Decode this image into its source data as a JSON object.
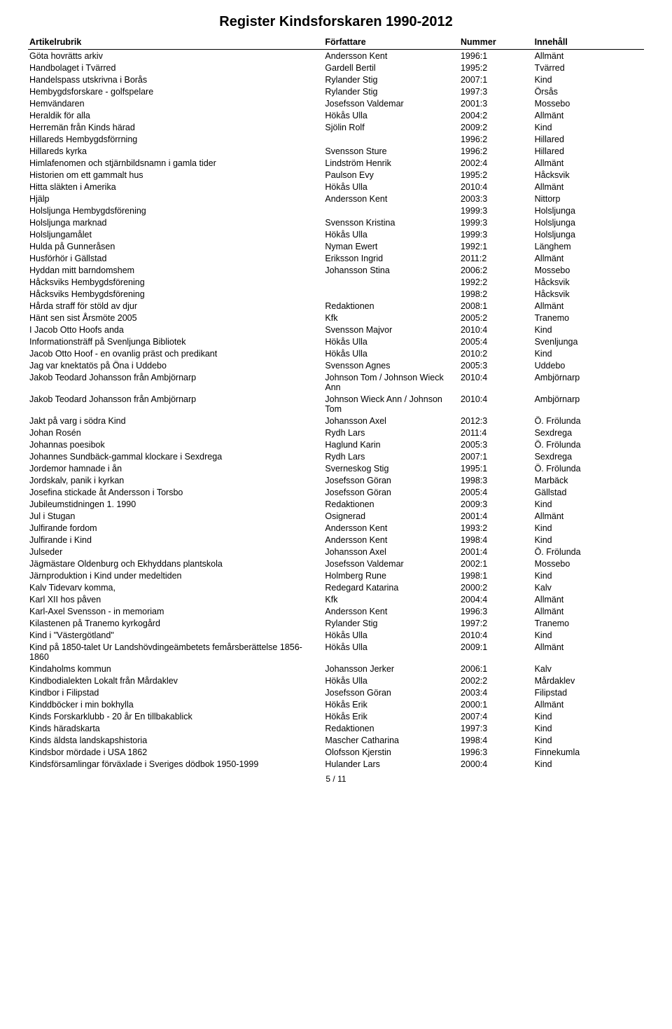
{
  "title": "Register Kindsforskaren 1990-2012",
  "columns": [
    "Artikelrubrik",
    "Författare",
    "Nummer",
    "Innehåll"
  ],
  "rows": [
    [
      "Göta hovrätts arkiv",
      "Andersson Kent",
      "1996:1",
      "Allmänt"
    ],
    [
      "Handbolaget i Tvärred",
      "Gardell Bertil",
      "1995:2",
      "Tvärred"
    ],
    [
      "Handelspass utskrivna i Borås",
      "Rylander Stig",
      "2007:1",
      "Kind"
    ],
    [
      "Hembygdsforskare - golfspelare",
      "Rylander Stig",
      "1997:3",
      "Örsås"
    ],
    [
      "Hemvändaren",
      "Josefsson Valdemar",
      "2001:3",
      "Mossebo"
    ],
    [
      "Heraldik för alla",
      "Hökås Ulla",
      "2004:2",
      "Allmänt"
    ],
    [
      "Herremän från Kinds härad",
      "Sjölin Rolf",
      "2009:2",
      "Kind"
    ],
    [
      "Hillareds Hembygdsförrning",
      "",
      "1996:2",
      "Hillared"
    ],
    [
      "Hillareds kyrka",
      "Svensson Sture",
      "1996:2",
      "Hillared"
    ],
    [
      "Himlafenomen och stjärnbildsnamn i gamla tider",
      "Lindström Henrik",
      "2002:4",
      "Allmänt"
    ],
    [
      "Historien om ett gammalt hus",
      "Paulson Evy",
      "1995:2",
      "Håcksvik"
    ],
    [
      "Hitta släkten i Amerika",
      "Hökås Ulla",
      "2010:4",
      "Allmänt"
    ],
    [
      "Hjälp",
      "Andersson Kent",
      "2003:3",
      "Nittorp"
    ],
    [
      "Holsljunga Hembygdsförening",
      "",
      "1999:3",
      "Holsljunga"
    ],
    [
      "Holsljunga marknad",
      "Svensson Kristina",
      "1999:3",
      "Holsljunga"
    ],
    [
      "Holsljungamålet",
      "Hökås Ulla",
      "1999:3",
      "Holsljunga"
    ],
    [
      "Hulda på Gunneråsen",
      "Nyman Ewert",
      "1992:1",
      "Länghem"
    ],
    [
      "Husförhör i Gällstad",
      "Eriksson Ingrid",
      "2011:2",
      "Allmänt"
    ],
    [
      "Hyddan mitt barndomshem",
      "Johansson Stina",
      "2006:2",
      "Mossebo"
    ],
    [
      "Håcksviks Hembygdsförening",
      "",
      "1992:2",
      "Håcksvik"
    ],
    [
      "Håcksviks Hembygdsförening",
      "",
      "1998:2",
      "Håcksvik"
    ],
    [
      "Hårda straff för stöld av djur",
      "Redaktionen",
      "2008:1",
      "Allmänt"
    ],
    [
      "Hänt sen sist  Årsmöte 2005",
      "Kfk",
      "2005:2",
      "Tranemo"
    ],
    [
      "I Jacob Otto Hoofs anda",
      "Svensson Majvor",
      "2010:4",
      "Kind"
    ],
    [
      "Informationsträff på Svenljunga Bibliotek",
      "Hökås Ulla",
      "2005:4",
      "Svenljunga"
    ],
    [
      "Jacob Otto Hoof - en ovanlig präst och predikant",
      "Hökås Ulla",
      "2010:2",
      "Kind"
    ],
    [
      "Jag var knektatös på Öna i Uddebo",
      "Svensson Agnes",
      "2005:3",
      "Uddebo"
    ],
    [
      "Jakob Teodard Johansson från Ambjörnarp",
      "Johnson Tom / Johnson Wieck Ann",
      "2010:4",
      "Ambjörnarp"
    ],
    [
      "Jakob Teodard Johansson från Ambjörnarp",
      "Johnson Wieck Ann / Johnson Tom",
      "2010:4",
      "Ambjörnarp"
    ],
    [
      "Jakt på varg i södra Kind",
      "Johansson Axel",
      "2012:3",
      "Ö. Frölunda"
    ],
    [
      "Johan Rosén",
      "Rydh Lars",
      "2011:4",
      "Sexdrega"
    ],
    [
      "Johannas poesibok",
      "Haglund Karin",
      "2005:3",
      "Ö. Frölunda"
    ],
    [
      "Johannes Sundbäck-gammal klockare i Sexdrega",
      "Rydh Lars",
      "2007:1",
      "Sexdrega"
    ],
    [
      "Jordemor hamnade i ån",
      "Sverneskog Stig",
      "1995:1",
      "Ö. Frölunda"
    ],
    [
      "Jordskalv, panik i kyrkan",
      "Josefsson Göran",
      "1998:3",
      "Marbäck"
    ],
    [
      "Josefina stickade åt Andersson i Torsbo",
      "Josefsson Göran",
      "2005:4",
      "Gällstad"
    ],
    [
      "Jubileumstidningen 1. 1990",
      "Redaktionen",
      "2009:3",
      "Kind"
    ],
    [
      "Jul i Stugan",
      "Osignerad",
      "2001:4",
      "Allmänt"
    ],
    [
      "Julfirande fordom",
      "Andersson Kent",
      "1993:2",
      "Kind"
    ],
    [
      "Julfirande i Kind",
      "Andersson Kent",
      "1998:4",
      "Kind"
    ],
    [
      "Julseder",
      "Johansson Axel",
      "2001:4",
      "Ö. Frölunda"
    ],
    [
      "Jägmästare Oldenburg och Ekhyddans plantskola",
      "Josefsson Valdemar",
      "2002:1",
      "Mossebo"
    ],
    [
      "Järnproduktion i Kind under medeltiden",
      "Holmberg Rune",
      "1998:1",
      "Kind"
    ],
    [
      "Kalv Tidevarv komma,",
      "Redegard Katarina",
      "2000:2",
      "Kalv"
    ],
    [
      "Karl XII hos påven",
      "Kfk",
      "2004:4",
      "Allmänt"
    ],
    [
      "Karl-Axel Svensson - in memoriam",
      "Andersson Kent",
      "1996:3",
      "Allmänt"
    ],
    [
      "Kilastenen på Tranemo kyrkogård",
      "Rylander Stig",
      "1997:2",
      "Tranemo"
    ],
    [
      "Kind i \"Västergötland\"",
      "Hökås Ulla",
      "2010:4",
      "Kind"
    ],
    [
      "Kind på 1850-talet Ur Landshövdingeämbetets femårsberättelse 1856-1860",
      "Hökås Ulla",
      "2009:1",
      "Allmänt"
    ],
    [
      "Kindaholms kommun",
      "Johansson Jerker",
      "2006:1",
      "Kalv"
    ],
    [
      "Kindbodialekten Lokalt från Mårdaklev",
      "Hökås Ulla",
      "2002:2",
      "Mårdaklev"
    ],
    [
      "Kindbor i Filipstad",
      "Josefsson Göran",
      "2003:4",
      "Filipstad"
    ],
    [
      "Kinddböcker i min bokhylla",
      "Hökås Erik",
      "2000:1",
      "Allmänt"
    ],
    [
      "Kinds Forskarklubb - 20 år En tillbakablick",
      "Hökås Erik",
      "2007:4",
      "Kind"
    ],
    [
      "Kinds häradskarta",
      "Redaktionen",
      "1997:3",
      "Kind"
    ],
    [
      "Kinds äldsta landskapshistoria",
      "Mascher Catharina",
      "1998:4",
      "Kind"
    ],
    [
      "Kindsbor mördade i USA 1862",
      "Olofsson Kjerstin",
      "1996:3",
      "Finnekumla"
    ],
    [
      "Kindsförsamlingar förväxlade i Sveriges dödbok 1950-1999",
      "Hulander Lars",
      "2000:4",
      "Kind"
    ]
  ],
  "page_number": "5 / 11"
}
